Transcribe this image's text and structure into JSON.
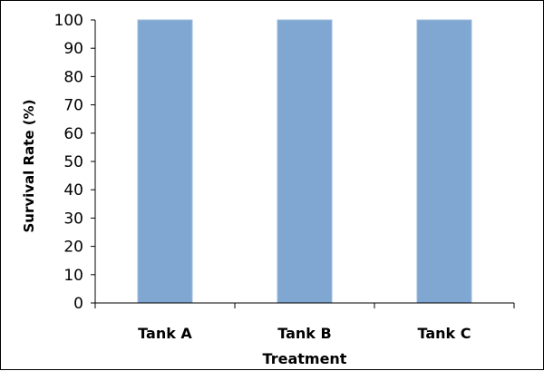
{
  "chart_data": {
    "type": "bar",
    "categories": [
      "Tank A",
      "Tank B",
      "Tank C"
    ],
    "values": [
      100,
      100,
      100
    ],
    "xlabel": "Treatment",
    "ylabel": "Survival Rate (%)",
    "ylim": [
      0,
      100
    ],
    "yticks": [
      0,
      10,
      20,
      30,
      40,
      50,
      60,
      70,
      80,
      90,
      100
    ],
    "grid": false,
    "legend": "none",
    "colors": {
      "bar": "#7fa7d1",
      "bar_edge": "#9ebbdd",
      "axis": "#000000"
    }
  }
}
